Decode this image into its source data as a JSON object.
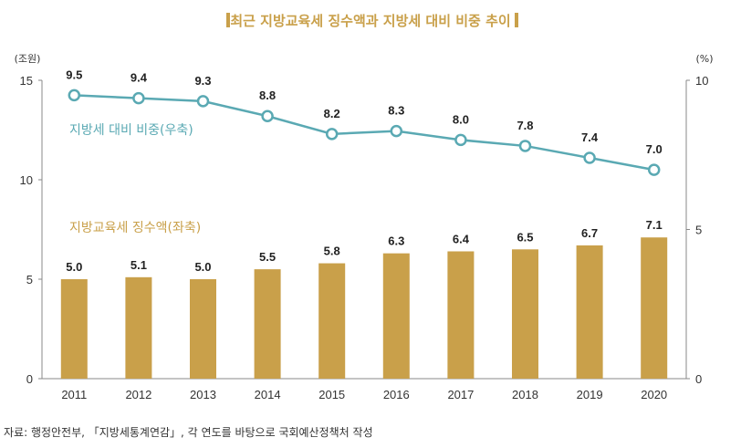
{
  "chart_data": {
    "type": "bar+line",
    "title": "최근 지방교육세 징수액과 지방세 대비 비중 추이",
    "categories": [
      "2011",
      "2012",
      "2013",
      "2014",
      "2015",
      "2016",
      "2017",
      "2018",
      "2019",
      "2020"
    ],
    "series": [
      {
        "name": "지방교육세 징수액(좌축)",
        "type": "bar",
        "axis": "left",
        "values": [
          5.0,
          5.1,
          5.0,
          5.5,
          5.8,
          6.3,
          6.4,
          6.5,
          6.7,
          7.1
        ],
        "labels": [
          "5.0",
          "5.1",
          "5.0",
          "5.5",
          "5.8",
          "6.3",
          "6.4",
          "6.5",
          "6.7",
          "7.1"
        ]
      },
      {
        "name": "지방세 대비 비중(우축)",
        "type": "line",
        "axis": "right",
        "values": [
          9.5,
          9.4,
          9.3,
          8.8,
          8.2,
          8.3,
          8.0,
          7.8,
          7.4,
          7.0
        ],
        "labels": [
          "9.5",
          "9.4",
          "9.3",
          "8.8",
          "8.2",
          "8.3",
          "8.0",
          "7.8",
          "7.4",
          "7.0"
        ]
      }
    ],
    "left_axis": {
      "unit": "(조원)",
      "range": [
        0,
        15
      ],
      "ticks": [
        0,
        5,
        10,
        15
      ],
      "tick_labels": [
        "0",
        "5",
        "10",
        "15"
      ]
    },
    "right_axis": {
      "unit": "(%)",
      "range": [
        0,
        10
      ],
      "ticks": [
        0,
        5,
        10
      ],
      "tick_labels": [
        "0",
        "5",
        "10"
      ]
    },
    "source": "자료: 행정안전부, 「지방세통계연감」, 각 연도를 바탕으로 국회예산정책처 작성",
    "colors": {
      "bar": "#c9a04a",
      "line": "#5aa9b3",
      "marker_fill": "#ffffff",
      "title": "#c9a04a"
    }
  }
}
